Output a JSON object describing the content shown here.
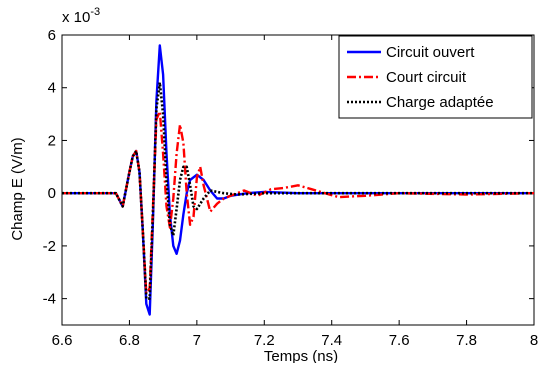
{
  "chart_data": {
    "type": "line",
    "xlabel": "Temps (ns)",
    "ylabel": "Champ E (V/m)",
    "y_exponent_label": "x 10",
    "y_exponent_power": "-3",
    "xlim": [
      6.6,
      8.0
    ],
    "ylim": [
      -5,
      6
    ],
    "x_ticks": [
      6.6,
      6.8,
      7.0,
      7.2,
      7.4,
      7.6,
      7.8,
      8.0
    ],
    "x_tick_labels": [
      "6.6",
      "6.8",
      "7",
      "7.2",
      "7.4",
      "7.6",
      "7.8",
      "8"
    ],
    "y_ticks": [
      -4,
      -2,
      0,
      2,
      4,
      6
    ],
    "y_tick_labels": [
      "-4",
      "-2",
      "0",
      "2",
      "4",
      "6"
    ],
    "grid": true,
    "legend_position": "top-right",
    "series": [
      {
        "name": "Circuit ouvert",
        "color": "#0000ff",
        "style": "solid",
        "x": [
          6.6,
          6.76,
          6.78,
          6.8,
          6.81,
          6.82,
          6.83,
          6.84,
          6.85,
          6.86,
          6.87,
          6.88,
          6.89,
          6.9,
          6.91,
          6.92,
          6.93,
          6.94,
          6.95,
          6.96,
          6.97,
          6.98,
          7.0,
          7.02,
          7.04,
          7.06,
          7.08,
          7.1,
          7.15,
          7.2,
          7.3,
          7.5,
          8.0
        ],
        "y": [
          0.0,
          0.0,
          -0.5,
          0.8,
          1.4,
          1.6,
          0.8,
          -1.5,
          -4.2,
          -4.6,
          -1.0,
          3.5,
          5.6,
          4.5,
          1.5,
          -0.8,
          -2.0,
          -2.3,
          -1.8,
          -0.8,
          0.0,
          0.5,
          0.7,
          0.5,
          0.1,
          -0.2,
          -0.2,
          -0.1,
          0.0,
          0.05,
          0.0,
          0.0,
          0.0
        ]
      },
      {
        "name": "Court circuit",
        "color": "#ff0000",
        "style": "dashdot",
        "x": [
          6.6,
          6.76,
          6.78,
          6.8,
          6.81,
          6.82,
          6.83,
          6.84,
          6.85,
          6.86,
          6.87,
          6.88,
          6.89,
          6.9,
          6.91,
          6.92,
          6.93,
          6.94,
          6.95,
          6.96,
          6.97,
          6.98,
          6.99,
          7.0,
          7.01,
          7.02,
          7.04,
          7.06,
          7.08,
          7.1,
          7.14,
          7.18,
          7.22,
          7.26,
          7.3,
          7.34,
          7.38,
          7.42,
          7.5,
          7.6,
          7.8,
          8.0
        ],
        "y": [
          0.0,
          0.0,
          -0.5,
          0.8,
          1.4,
          1.6,
          0.8,
          -1.5,
          -3.8,
          -3.6,
          -0.5,
          2.8,
          3.1,
          1.5,
          -0.5,
          -1.3,
          -0.2,
          1.5,
          2.6,
          1.9,
          0.0,
          -1.2,
          -0.9,
          0.6,
          1.0,
          0.3,
          -0.7,
          -0.4,
          -0.2,
          -0.1,
          0.1,
          -0.1,
          0.15,
          0.2,
          0.3,
          0.15,
          0.0,
          -0.15,
          -0.1,
          0.0,
          -0.05,
          0.0
        ]
      },
      {
        "name": "Charge adaptée",
        "color": "#000000",
        "style": "dotted",
        "x": [
          6.6,
          6.76,
          6.78,
          6.8,
          6.81,
          6.82,
          6.83,
          6.84,
          6.85,
          6.86,
          6.87,
          6.88,
          6.89,
          6.9,
          6.91,
          6.92,
          6.93,
          6.94,
          6.95,
          6.96,
          6.97,
          6.98,
          6.99,
          7.0,
          7.02,
          7.04,
          7.06,
          7.08,
          7.12,
          7.2,
          7.4,
          8.0
        ],
        "y": [
          0.0,
          0.0,
          -0.5,
          0.8,
          1.4,
          1.6,
          0.8,
          -1.5,
          -4.0,
          -4.0,
          -0.7,
          3.2,
          4.2,
          3.0,
          0.5,
          -1.2,
          -1.6,
          -0.6,
          0.5,
          1.0,
          1.0,
          0.3,
          -0.5,
          -0.6,
          -0.2,
          0.1,
          0.05,
          0.0,
          -0.05,
          0.0,
          0.0,
          0.0
        ]
      }
    ]
  }
}
